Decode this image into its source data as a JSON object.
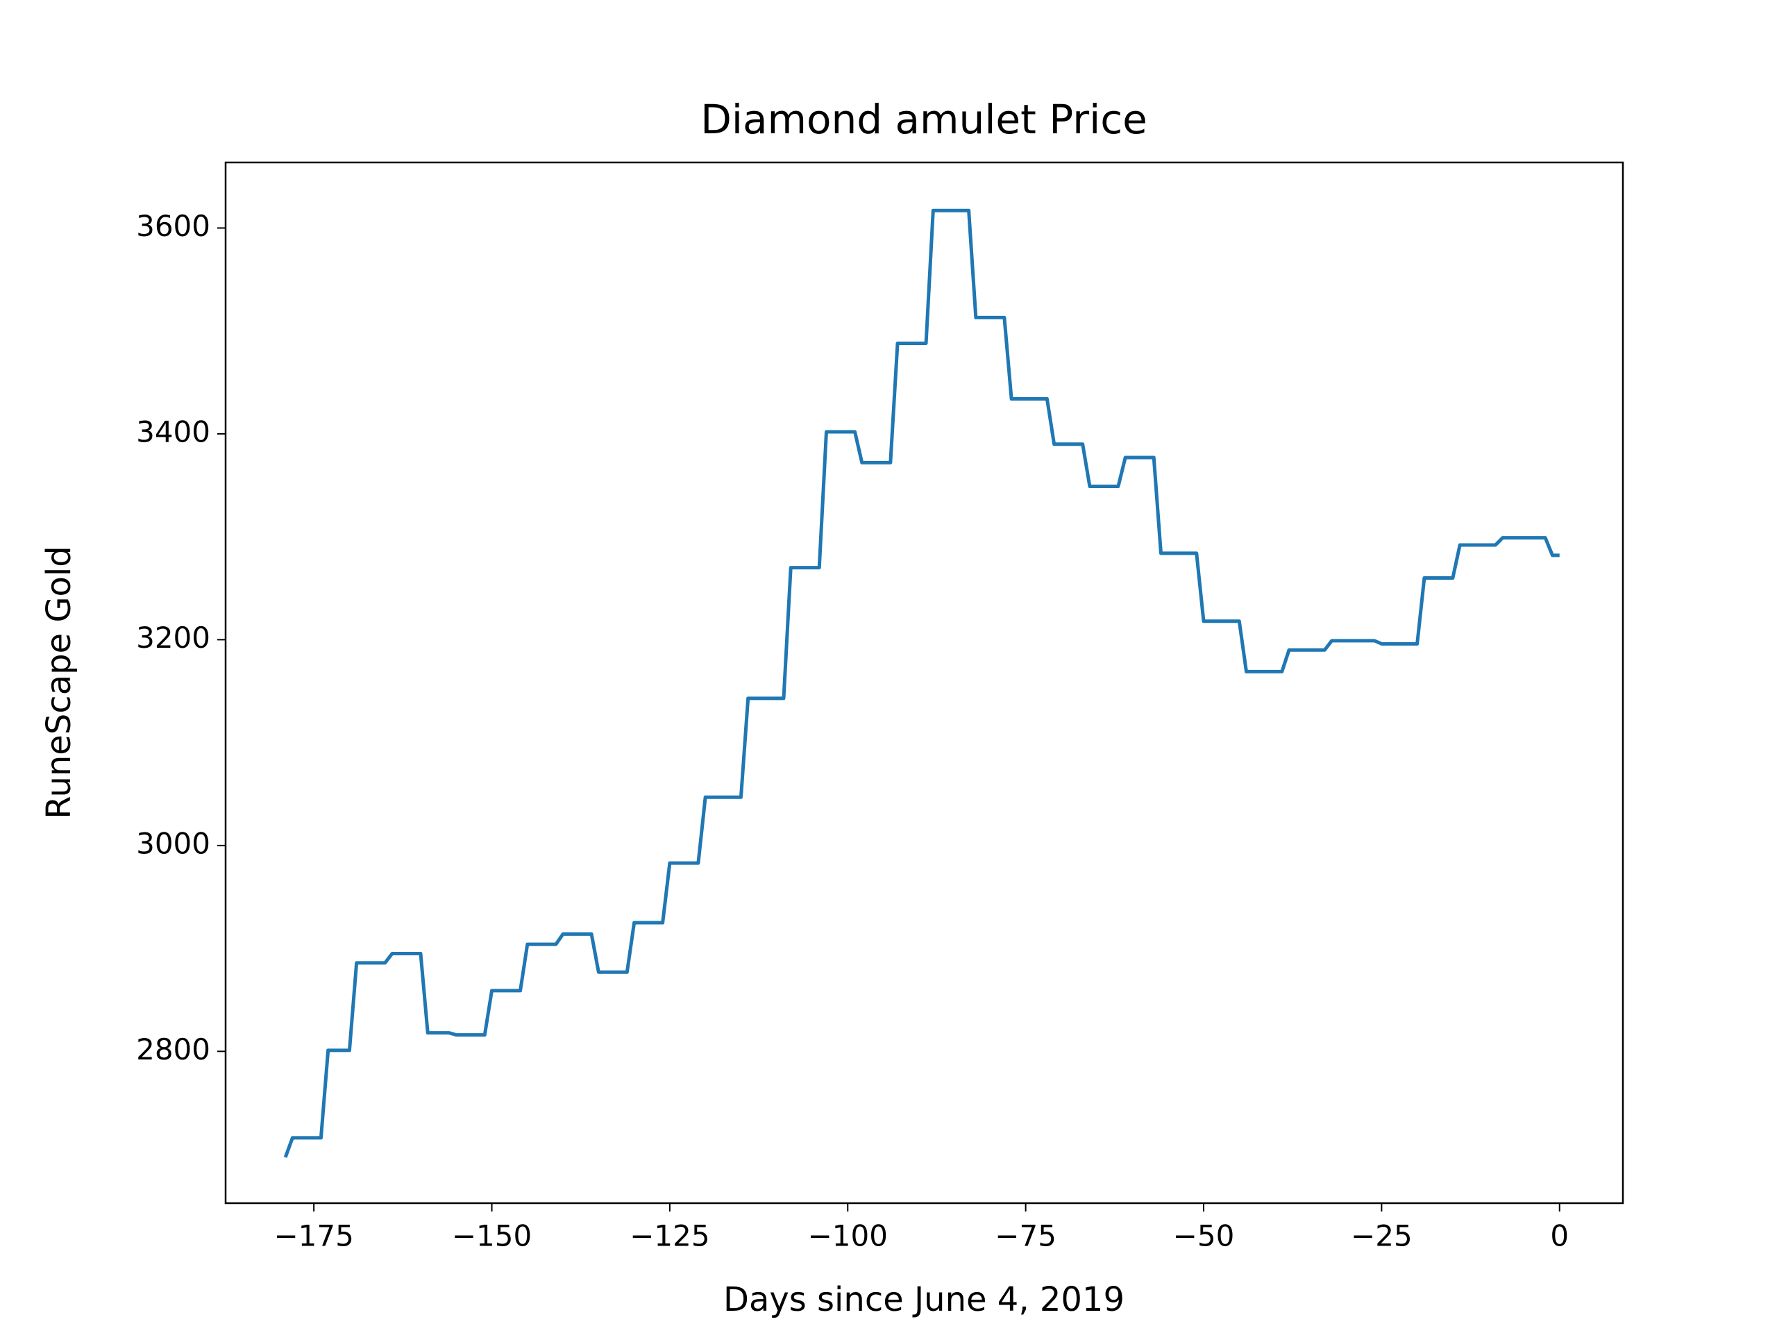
{
  "chart_data": {
    "type": "line",
    "title": "Diamond amulet Price",
    "xlabel": "Days since June 4, 2019",
    "ylabel": "RuneScape Gold",
    "x": [
      -179,
      -178,
      -174,
      -173,
      -170,
      -169,
      -165,
      -164,
      -160,
      -159,
      -156,
      -155,
      -151,
      -150,
      -146,
      -145,
      -141,
      -140,
      -136,
      -135,
      -131,
      -130,
      -126,
      -125,
      -121,
      -120,
      -115,
      -114,
      -109,
      -108,
      -104,
      -103,
      -99,
      -98,
      -94,
      -93,
      -89,
      -88,
      -83,
      -82,
      -78,
      -77,
      -72,
      -71,
      -67,
      -66,
      -62,
      -61,
      -57,
      -56,
      -51,
      -50,
      -45,
      -44,
      -39,
      -38,
      -33,
      -32,
      -26,
      -25,
      -20,
      -19,
      -15,
      -14,
      -9,
      -8,
      -2,
      -1,
      0
    ],
    "series": [
      {
        "color": "#1f77b4",
        "values": [
          2697,
          2716,
          2716,
          2801,
          2801,
          2886,
          2886,
          2895,
          2895,
          2818,
          2818,
          2816,
          2816,
          2859,
          2859,
          2904,
          2904,
          2914,
          2914,
          2877,
          2877,
          2925,
          2925,
          2983,
          2983,
          3047,
          3047,
          3143,
          3143,
          3270,
          3270,
          3402,
          3402,
          3372,
          3372,
          3488,
          3488,
          3617,
          3617,
          3513,
          3513,
          3434,
          3434,
          3390,
          3390,
          3349,
          3349,
          3377,
          3377,
          3284,
          3284,
          3218,
          3218,
          3169,
          3169,
          3190,
          3190,
          3199,
          3199,
          3196,
          3196,
          3260,
          3260,
          3292,
          3292,
          3299,
          3299,
          3282,
          3282
        ]
      }
    ],
    "xlim": [
      -187.4,
      8.9
    ],
    "ylim": [
      2652.5,
      3663.7
    ],
    "xticks": [
      {
        "value": -175,
        "label": "−175"
      },
      {
        "value": -150,
        "label": "−150"
      },
      {
        "value": -125,
        "label": "−125"
      },
      {
        "value": -100,
        "label": "−100"
      },
      {
        "value": -75,
        "label": "−75"
      },
      {
        "value": -50,
        "label": "−50"
      },
      {
        "value": -25,
        "label": "−25"
      },
      0
    ],
    "yticks": [
      2800,
      3000,
      3200,
      3400,
      3600
    ],
    "grid": false
  }
}
